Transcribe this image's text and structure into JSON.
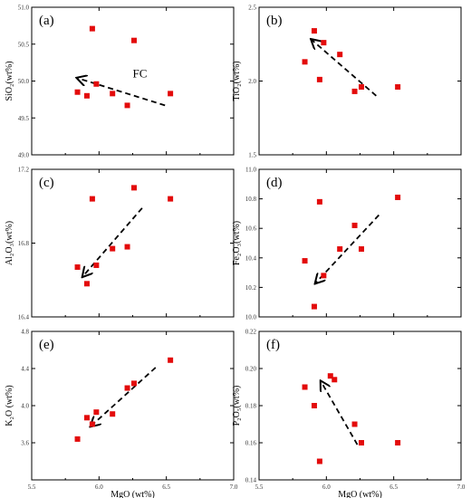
{
  "chart_data": [
    {
      "type": "scatter",
      "panel_label": "(a)",
      "ylabel": "SiO₂(wt%)",
      "xlim": [
        5.5,
        7.0
      ],
      "ylim": [
        49.0,
        51.0
      ],
      "x_ticks": [
        "5.5",
        "6.0",
        "6.5",
        "7.0"
      ],
      "x_tick_labels_shown": false,
      "y_ticks": [
        "49.0",
        "49.5",
        "50.0",
        "50.5",
        "51.0"
      ],
      "points": [
        {
          "x": 5.84,
          "y": 49.85
        },
        {
          "x": 5.91,
          "y": 49.8
        },
        {
          "x": 5.95,
          "y": 50.71
        },
        {
          "x": 5.98,
          "y": 49.96
        },
        {
          "x": 6.1,
          "y": 49.83
        },
        {
          "x": 6.21,
          "y": 49.67
        },
        {
          "x": 6.26,
          "y": 50.55
        },
        {
          "x": 6.53,
          "y": 49.83
        }
      ],
      "trend": {
        "from": [
          6.49,
          49.67
        ],
        "to": [
          5.84,
          50.04
        ]
      },
      "annotation": {
        "text": "FC",
        "x": 6.25,
        "y": 50.05
      }
    },
    {
      "type": "scatter",
      "panel_label": "(b)",
      "ylabel": "TiO₂(wt%)",
      "xlim": [
        5.5,
        7.0
      ],
      "ylim": [
        1.5,
        2.5
      ],
      "x_ticks": [
        "5.5",
        "6.0",
        "6.5",
        "7.0"
      ],
      "x_tick_labels_shown": false,
      "y_ticks": [
        "1.5",
        "2.0",
        "2.5"
      ],
      "points": [
        {
          "x": 5.84,
          "y": 2.13
        },
        {
          "x": 5.91,
          "y": 2.34
        },
        {
          "x": 5.95,
          "y": 2.01
        },
        {
          "x": 5.98,
          "y": 2.26
        },
        {
          "x": 6.1,
          "y": 2.18
        },
        {
          "x": 6.21,
          "y": 1.93
        },
        {
          "x": 6.26,
          "y": 1.96
        },
        {
          "x": 6.53,
          "y": 1.96
        }
      ],
      "trend": {
        "from": [
          6.37,
          1.9
        ],
        "to": [
          5.89,
          2.28
        ]
      }
    },
    {
      "type": "scatter",
      "panel_label": "(c)",
      "ylabel": "Al₂O₃(wt%)",
      "xlim": [
        5.5,
        7.0
      ],
      "ylim": [
        16.4,
        17.2
      ],
      "x_ticks": [
        "5.5",
        "6.0",
        "6.5",
        "7.0"
      ],
      "x_tick_labels_shown": false,
      "y_ticks": [
        "16.4",
        "16.8",
        "17.2"
      ],
      "points": [
        {
          "x": 5.84,
          "y": 16.67
        },
        {
          "x": 5.91,
          "y": 16.58
        },
        {
          "x": 5.95,
          "y": 17.04
        },
        {
          "x": 5.98,
          "y": 16.68
        },
        {
          "x": 6.1,
          "y": 16.77
        },
        {
          "x": 6.21,
          "y": 16.78
        },
        {
          "x": 6.26,
          "y": 17.1
        },
        {
          "x": 6.53,
          "y": 17.04
        }
      ],
      "trend": {
        "from": [
          6.32,
          16.99
        ],
        "to": [
          5.88,
          16.62
        ]
      }
    },
    {
      "type": "scatter",
      "panel_label": "(d)",
      "ylabel": "Fe₂O₃(wt%)",
      "xlim": [
        5.5,
        7.0
      ],
      "ylim": [
        10.0,
        11.0
      ],
      "x_ticks": [
        "5.5",
        "6.0",
        "6.5",
        "7.0"
      ],
      "x_tick_labels_shown": false,
      "y_ticks": [
        "10.0",
        "10.2",
        "10.4",
        "10.6",
        "10.8",
        "11.0"
      ],
      "points": [
        {
          "x": 5.84,
          "y": 10.38
        },
        {
          "x": 5.91,
          "y": 10.07
        },
        {
          "x": 5.95,
          "y": 10.78
        },
        {
          "x": 5.98,
          "y": 10.28
        },
        {
          "x": 6.1,
          "y": 10.46
        },
        {
          "x": 6.21,
          "y": 10.62
        },
        {
          "x": 6.26,
          "y": 10.46
        },
        {
          "x": 6.53,
          "y": 10.81
        }
      ],
      "trend": {
        "from": [
          6.39,
          10.69
        ],
        "to": [
          5.92,
          10.23
        ]
      }
    },
    {
      "type": "scatter",
      "panel_label": "(e)",
      "ylabel": "K₂O (wt%)",
      "xlabel": "MgO (wt%)",
      "xlim": [
        5.5,
        7.0
      ],
      "ylim": [
        3.2,
        4.8
      ],
      "x_ticks": [
        "5.5",
        "6.0",
        "6.5",
        "7.0"
      ],
      "x_tick_labels_shown": true,
      "y_ticks": [
        "3.6",
        "4.0",
        "4.4",
        "4.8"
      ],
      "points": [
        {
          "x": 5.84,
          "y": 3.64
        },
        {
          "x": 5.91,
          "y": 3.87
        },
        {
          "x": 5.95,
          "y": 3.8
        },
        {
          "x": 5.98,
          "y": 3.93
        },
        {
          "x": 6.1,
          "y": 3.91
        },
        {
          "x": 6.21,
          "y": 4.19
        },
        {
          "x": 6.26,
          "y": 4.24
        },
        {
          "x": 6.53,
          "y": 4.49
        }
      ],
      "trend": {
        "from": [
          6.42,
          4.41
        ],
        "to": [
          5.94,
          3.78
        ]
      }
    },
    {
      "type": "scatter",
      "panel_label": "(f)",
      "ylabel": "P₂O₅(wt%)",
      "xlabel": "MgO (wt%)",
      "xlim": [
        5.5,
        7.0
      ],
      "ylim": [
        0.14,
        0.22
      ],
      "x_ticks": [
        "5.5",
        "6.0",
        "6.5",
        "7.0"
      ],
      "x_tick_labels_shown": true,
      "y_ticks": [
        "0.14",
        "0.16",
        "0.18",
        "0.20",
        "0.22"
      ],
      "points": [
        {
          "x": 5.84,
          "y": 0.19
        },
        {
          "x": 5.91,
          "y": 0.18
        },
        {
          "x": 5.95,
          "y": 0.15
        },
        {
          "x": 6.03,
          "y": 0.196
        },
        {
          "x": 6.06,
          "y": 0.194
        },
        {
          "x": 6.21,
          "y": 0.17
        },
        {
          "x": 6.26,
          "y": 0.16
        },
        {
          "x": 6.53,
          "y": 0.16
        }
      ],
      "trend": {
        "from": [
          6.23,
          0.159
        ],
        "to": [
          5.96,
          0.193
        ]
      }
    }
  ]
}
